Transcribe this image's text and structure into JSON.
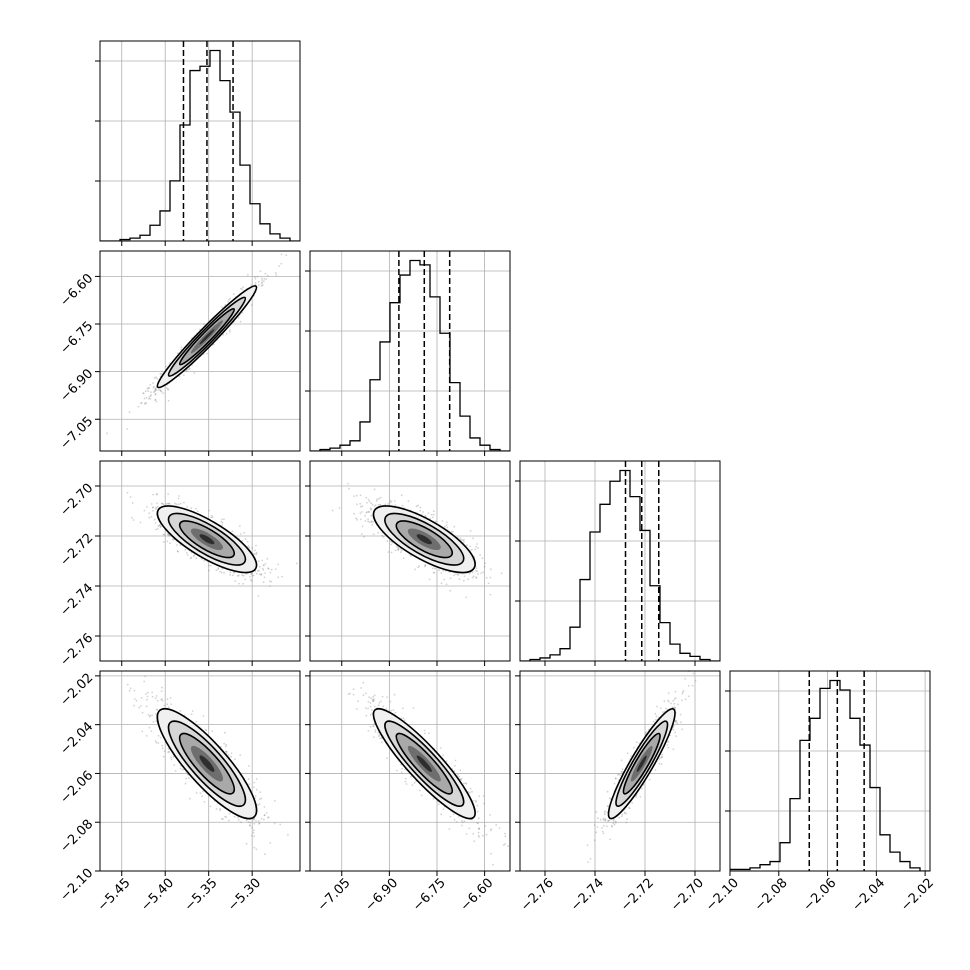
{
  "chart_data": {
    "type": "corner",
    "params": [
      {
        "range": [
          -5.475,
          -5.245
        ],
        "ticks": [
          -5.45,
          -5.4,
          -5.35,
          -5.3
        ],
        "tick_labels": [
          "−5.45",
          "−5.40",
          "−5.35",
          "−5.30"
        ],
        "quantiles": [
          -5.379,
          -5.352,
          -5.322
        ],
        "hist_counts": [
          0,
          0,
          1,
          2,
          4,
          11,
          21,
          42,
          81,
          119,
          122,
          133,
          112,
          90,
          53,
          26,
          12,
          5,
          2,
          0
        ]
      },
      {
        "range": [
          -7.15,
          -6.52
        ],
        "ticks": [
          -7.05,
          -6.9,
          -6.75,
          -6.6
        ],
        "tick_labels": [
          "−7.05",
          "−6.90",
          "−6.75",
          "−6.60"
        ],
        "quantiles": [
          -6.87,
          -6.79,
          -6.71
        ],
        "hist_counts": [
          0,
          1,
          2,
          4,
          7,
          20,
          49,
          75,
          102,
          121,
          131,
          128,
          106,
          81,
          47,
          24,
          9,
          4,
          1,
          0
        ]
      },
      {
        "range": [
          -2.77,
          -2.69
        ],
        "ticks": [
          -2.76,
          -2.74,
          -2.72,
          -2.7
        ],
        "tick_labels": [
          "−2.76",
          "−2.74",
          "−2.72",
          "−2.70"
        ],
        "quantiles": [
          -2.7278,
          -2.7213,
          -2.7145
        ],
        "hist_counts": [
          0,
          1,
          2,
          4,
          8,
          22,
          53,
          84,
          102,
          117,
          124,
          107,
          85,
          49,
          25,
          11,
          5,
          3,
          1,
          0
        ]
      },
      {
        "range": [
          -2.1,
          -2.018
        ],
        "ticks": [
          -2.1,
          -2.08,
          -2.06,
          -2.04,
          -2.02
        ],
        "tick_labels": [
          "−2.10",
          "−2.08",
          "−2.06",
          "−2.04",
          "−2.02"
        ],
        "quantiles": [
          -2.0675,
          -2.056,
          -2.045
        ],
        "hist_counts": [
          1,
          1,
          2,
          4,
          6,
          18,
          46,
          83,
          97,
          116,
          121,
          115,
          97,
          80,
          53,
          23,
          12,
          6,
          2,
          0
        ]
      }
    ],
    "correlations": [
      [
        1,
        0.97,
        -0.78,
        -0.85
      ],
      [
        0.97,
        1,
        -0.75,
        -0.9
      ],
      [
        -0.78,
        -0.75,
        1,
        0.92
      ],
      [
        -0.85,
        -0.9,
        0.92,
        1
      ]
    ],
    "grid": true,
    "colors": {
      "line": "#000000",
      "grid": "#b0b0b0",
      "scatter": "#808080",
      "background": "#ffffff"
    }
  }
}
